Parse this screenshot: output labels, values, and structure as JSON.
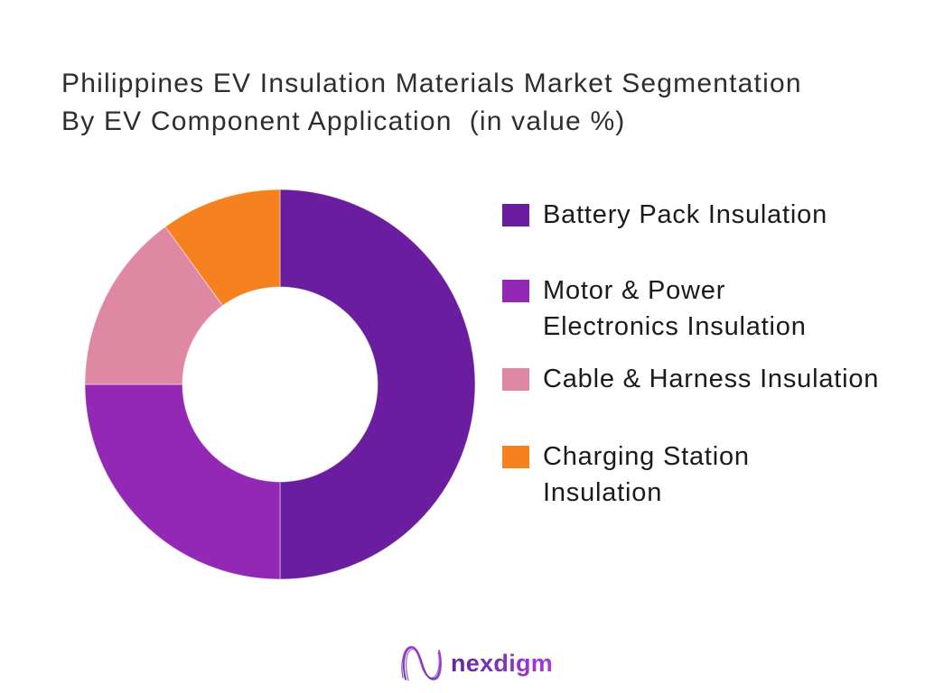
{
  "title": {
    "lines": [
      "Philippines EV Insulation Materials Market Segmentation",
      "By EV Component Application  (in value %)"
    ]
  },
  "chart_data": {
    "type": "pie",
    "subtype": "donut",
    "title": "Philippines EV Insulation Materials Market Segmentation By EV Component Application (in value %)",
    "unit": "value %",
    "start_angle_deg": 0,
    "direction": "clockwise",
    "inner_radius_ratio": 0.5,
    "labels_shown": false,
    "legend_position": "right",
    "series": [
      {
        "name": "Battery Pack Insulation",
        "value": 50,
        "color": "#6A1D9E"
      },
      {
        "name": "Motor & Power Electronics Insulation",
        "value": 25,
        "color": "#9228B4"
      },
      {
        "name": "Cable & Harness Insulation",
        "value": 15,
        "color": "#DE88A4"
      },
      {
        "name": "Charging Station Insulation",
        "value": 10,
        "color": "#F5811F"
      }
    ]
  },
  "legend": {
    "items": [
      {
        "lines": [
          "Battery Pack Insulation"
        ],
        "color": "#6A1D9E"
      },
      {
        "lines": [
          "Motor & Power",
          "Electronics Insulation"
        ],
        "color": "#9228B4"
      },
      {
        "lines": [
          "Cable & Harness Insulation"
        ],
        "color": "#DE88A4"
      },
      {
        "lines": [
          "Charging Station",
          "Insulation"
        ],
        "color": "#F5811F"
      }
    ]
  },
  "logo": {
    "wordmark": "nexdigm",
    "gradient_from": "#5E2A9B",
    "gradient_to": "#A93BD6"
  }
}
